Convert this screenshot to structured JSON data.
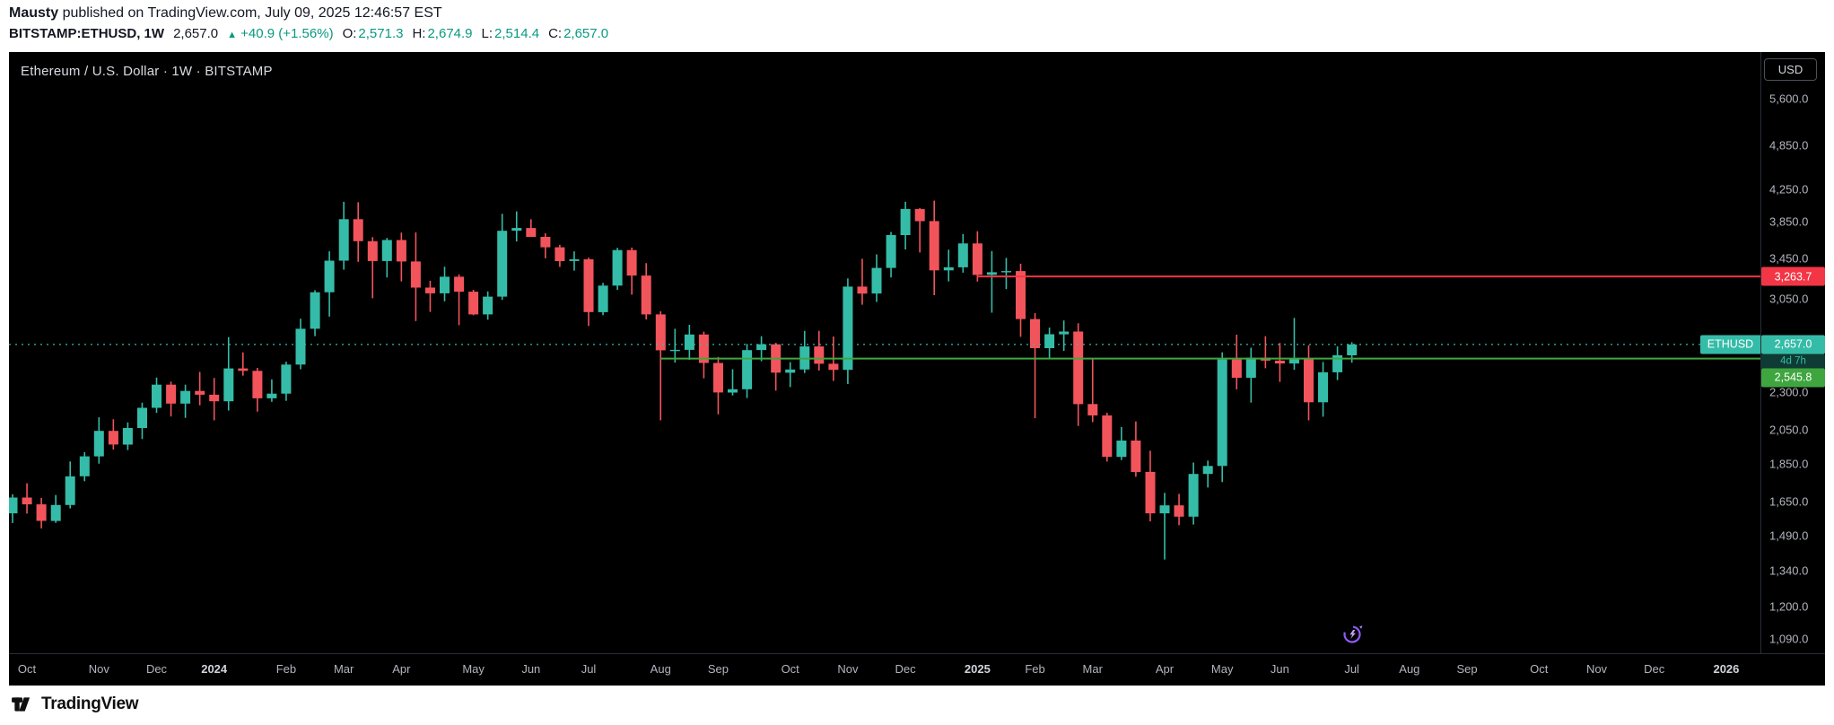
{
  "attribution": {
    "author": "Mausty",
    "text": " published on TradingView.com, July 09, 2025 12:46:57 EST"
  },
  "quote": {
    "symbol_interval": "BITSTAMP:ETHUSD, 1W",
    "last": "2,657.0",
    "arrow": "▲",
    "change": "+40.9 (+1.56%)",
    "ohlc": [
      {
        "label": "O:",
        "value": "2,571.3"
      },
      {
        "label": "H:",
        "value": "2,674.9"
      },
      {
        "label": "L:",
        "value": "2,514.4"
      },
      {
        "label": "C:",
        "value": "2,657.0"
      }
    ]
  },
  "chart": {
    "title": "Ethereum / U.S. Dollar · 1W · BITSTAMP",
    "currency_button": "USD",
    "symbol_tag": "ETHUSD",
    "countdown": "4d 7h",
    "colors": {
      "bg": "#000000",
      "up": "#35BCA8",
      "down": "#F2545C",
      "axis_text": "#B2B5BE",
      "red_level": "#F23645",
      "green_level": "#3FA63F",
      "countdown_bg": "#0E3B33",
      "header_teal": "#089981"
    },
    "price_axis": {
      "ticks": [
        5600,
        4850,
        4250,
        3850,
        3450,
        3050,
        2300,
        2050,
        1850,
        1650,
        1490,
        1340,
        1200,
        1090
      ]
    },
    "time_axis": {
      "labels": [
        {
          "label": "Oct",
          "week": 1
        },
        {
          "label": "Nov",
          "week": 6
        },
        {
          "label": "Dec",
          "week": 10
        },
        {
          "label": "2024",
          "week": 14,
          "year": true
        },
        {
          "label": "Feb",
          "week": 19
        },
        {
          "label": "Mar",
          "week": 23
        },
        {
          "label": "Apr",
          "week": 27
        },
        {
          "label": "May",
          "week": 32
        },
        {
          "label": "Jun",
          "week": 36
        },
        {
          "label": "Jul",
          "week": 40
        },
        {
          "label": "Aug",
          "week": 45
        },
        {
          "label": "Sep",
          "week": 49
        },
        {
          "label": "Oct",
          "week": 54
        },
        {
          "label": "Nov",
          "week": 58
        },
        {
          "label": "Dec",
          "week": 62
        },
        {
          "label": "2025",
          "week": 67,
          "year": true
        },
        {
          "label": "Feb",
          "week": 71
        },
        {
          "label": "Mar",
          "week": 75
        },
        {
          "label": "Apr",
          "week": 80
        },
        {
          "label": "May",
          "week": 84
        },
        {
          "label": "Jun",
          "week": 88
        },
        {
          "label": "Jul",
          "week": 93
        },
        {
          "label": "Aug",
          "week": 97
        },
        {
          "label": "Sep",
          "week": 101
        },
        {
          "label": "Oct",
          "week": 106
        },
        {
          "label": "Nov",
          "week": 110
        },
        {
          "label": "Dec",
          "week": 114
        },
        {
          "label": "2026",
          "week": 119,
          "year": true
        }
      ]
    },
    "levels": [
      {
        "price": 3263.7,
        "label": "3,263.7",
        "color": "#F23645",
        "from_week": 67
      },
      {
        "price": 2545.8,
        "label": "2,545.8",
        "color": "#3FA63F",
        "from_week": 45
      }
    ],
    "last_price": {
      "label": "2,657.0",
      "value": 2657.0
    }
  },
  "chart_data": {
    "type": "candlestick",
    "title": "Ethereum / U.S. Dollar · 1W · BITSTAMP",
    "symbol": "BITSTAMP:ETHUSD",
    "interval": "1W",
    "currency": "USD",
    "price_scale": "logarithmic",
    "y_axis_ticks": [
      5600,
      4850,
      4250,
      3850,
      3450,
      3050,
      2300,
      2050,
      1850,
      1650,
      1490,
      1340,
      1200,
      1090
    ],
    "start_week_monday": "2023-09-25",
    "bar_interval_days": 7,
    "current_bar": {
      "open": 2571.3,
      "high": 2674.9,
      "low": 2514.4,
      "close": 2657.0,
      "change": 40.9,
      "change_pct": 1.56,
      "time_remaining": "4d 7h"
    },
    "horizontal_levels": [
      {
        "price": 3263.7,
        "style": "resistance",
        "color": "#F23645"
      },
      {
        "price": 2545.8,
        "style": "support",
        "color": "#3FA63F"
      }
    ],
    "candles": [
      [
        1593,
        1688,
        1547,
        1671
      ],
      [
        1671,
        1745,
        1592,
        1637
      ],
      [
        1637,
        1669,
        1522,
        1557
      ],
      [
        1557,
        1684,
        1548,
        1634
      ],
      [
        1634,
        1864,
        1617,
        1782
      ],
      [
        1782,
        1917,
        1756,
        1893
      ],
      [
        1893,
        2131,
        1852,
        2045
      ],
      [
        2045,
        2118,
        1932,
        1962
      ],
      [
        1962,
        2098,
        1930,
        2063
      ],
      [
        2063,
        2227,
        1995,
        2193
      ],
      [
        2193,
        2403,
        2160,
        2352
      ],
      [
        2352,
        2374,
        2136,
        2221
      ],
      [
        2221,
        2352,
        2127,
        2308
      ],
      [
        2308,
        2445,
        2210,
        2282
      ],
      [
        2282,
        2400,
        2111,
        2237
      ],
      [
        2237,
        2717,
        2175,
        2471
      ],
      [
        2471,
        2594,
        2417,
        2453
      ],
      [
        2453,
        2475,
        2168,
        2257
      ],
      [
        2257,
        2390,
        2233,
        2289
      ],
      [
        2289,
        2522,
        2240,
        2500
      ],
      [
        2500,
        2872,
        2465,
        2786
      ],
      [
        2786,
        3131,
        2725,
        3112
      ],
      [
        3112,
        3523,
        2891,
        3424
      ],
      [
        3424,
        4093,
        3332,
        3882
      ],
      [
        3882,
        4087,
        3412,
        3632
      ],
      [
        3632,
        3677,
        3056,
        3420
      ],
      [
        3420,
        3668,
        3255,
        3645
      ],
      [
        3645,
        3728,
        3216,
        3416
      ],
      [
        3416,
        3729,
        2852,
        3156
      ],
      [
        3156,
        3222,
        2932,
        3102
      ],
      [
        3102,
        3362,
        3028,
        3262
      ],
      [
        3262,
        3285,
        2817,
        3117
      ],
      [
        3117,
        3135,
        2902,
        2910
      ],
      [
        2910,
        3120,
        2864,
        3071
      ],
      [
        3071,
        3946,
        3041,
        3749
      ],
      [
        3749,
        3975,
        3629,
        3780
      ],
      [
        3780,
        3881,
        3706,
        3680
      ],
      [
        3680,
        3721,
        3449,
        3566
      ],
      [
        3566,
        3592,
        3361,
        3420
      ],
      [
        3420,
        3522,
        3323,
        3438
      ],
      [
        3438,
        3456,
        2810,
        2930
      ],
      [
        2930,
        3202,
        2904,
        3175
      ],
      [
        3175,
        3560,
        3134,
        3536
      ],
      [
        3536,
        3563,
        3089,
        3273
      ],
      [
        3273,
        3398,
        2866,
        2910
      ],
      [
        2910,
        2938,
        2111,
        2610
      ],
      [
        2610,
        2786,
        2515,
        2614
      ],
      [
        2614,
        2820,
        2536,
        2738
      ],
      [
        2738,
        2762,
        2398,
        2512
      ],
      [
        2512,
        2558,
        2150,
        2297
      ],
      [
        2297,
        2465,
        2277,
        2320
      ],
      [
        2320,
        2662,
        2259,
        2612
      ],
      [
        2612,
        2724,
        2525,
        2658
      ],
      [
        2658,
        2670,
        2310,
        2439
      ],
      [
        2439,
        2518,
        2335,
        2463
      ],
      [
        2463,
        2768,
        2436,
        2641
      ],
      [
        2641,
        2769,
        2455,
        2506
      ],
      [
        2506,
        2721,
        2379,
        2460
      ],
      [
        2460,
        3245,
        2357,
        3166
      ],
      [
        3166,
        3444,
        2997,
        3100
      ],
      [
        3100,
        3490,
        3022,
        3350
      ],
      [
        3350,
        3735,
        3255,
        3700
      ],
      [
        3700,
        4093,
        3543,
        4005
      ],
      [
        4005,
        4014,
        3510,
        3860
      ],
      [
        3860,
        4107,
        3084,
        3325
      ],
      [
        3325,
        3540,
        3216,
        3356
      ],
      [
        3356,
        3712,
        3302,
        3608
      ],
      [
        3608,
        3744,
        3214,
        3280
      ],
      [
        3280,
        3525,
        2925,
        3306
      ],
      [
        3306,
        3453,
        3142,
        3318
      ],
      [
        3318,
        3393,
        2719,
        2869
      ],
      [
        2869,
        2921,
        2125,
        2627
      ],
      [
        2627,
        2796,
        2546,
        2740
      ],
      [
        2740,
        2857,
        2605,
        2763
      ],
      [
        2763,
        2833,
        2076,
        2218
      ],
      [
        2218,
        2550,
        2100,
        2143
      ],
      [
        2143,
        2160,
        1864,
        1890
      ],
      [
        1890,
        2069,
        1872,
        1986
      ],
      [
        1986,
        2104,
        1780,
        1806
      ],
      [
        1806,
        1926,
        1555,
        1593
      ],
      [
        1593,
        1695,
        1385,
        1632
      ],
      [
        1632,
        1690,
        1537,
        1577
      ],
      [
        1577,
        1858,
        1540,
        1795
      ],
      [
        1795,
        1869,
        1723,
        1839
      ],
      [
        1839,
        2595,
        1751,
        2539
      ],
      [
        2539,
        2737,
        2319,
        2402
      ],
      [
        2402,
        2631,
        2228,
        2553
      ],
      [
        2553,
        2724,
        2472,
        2530
      ],
      [
        2530,
        2669,
        2372,
        2508
      ],
      [
        2508,
        2879,
        2461,
        2547
      ],
      [
        2547,
        2650,
        2111,
        2230
      ],
      [
        2230,
        2520,
        2135,
        2442
      ],
      [
        2442,
        2641,
        2385,
        2571.3
      ],
      [
        2571.3,
        2674.9,
        2514.4,
        2657.0
      ]
    ]
  },
  "footer": {
    "brand": "TradingView"
  }
}
